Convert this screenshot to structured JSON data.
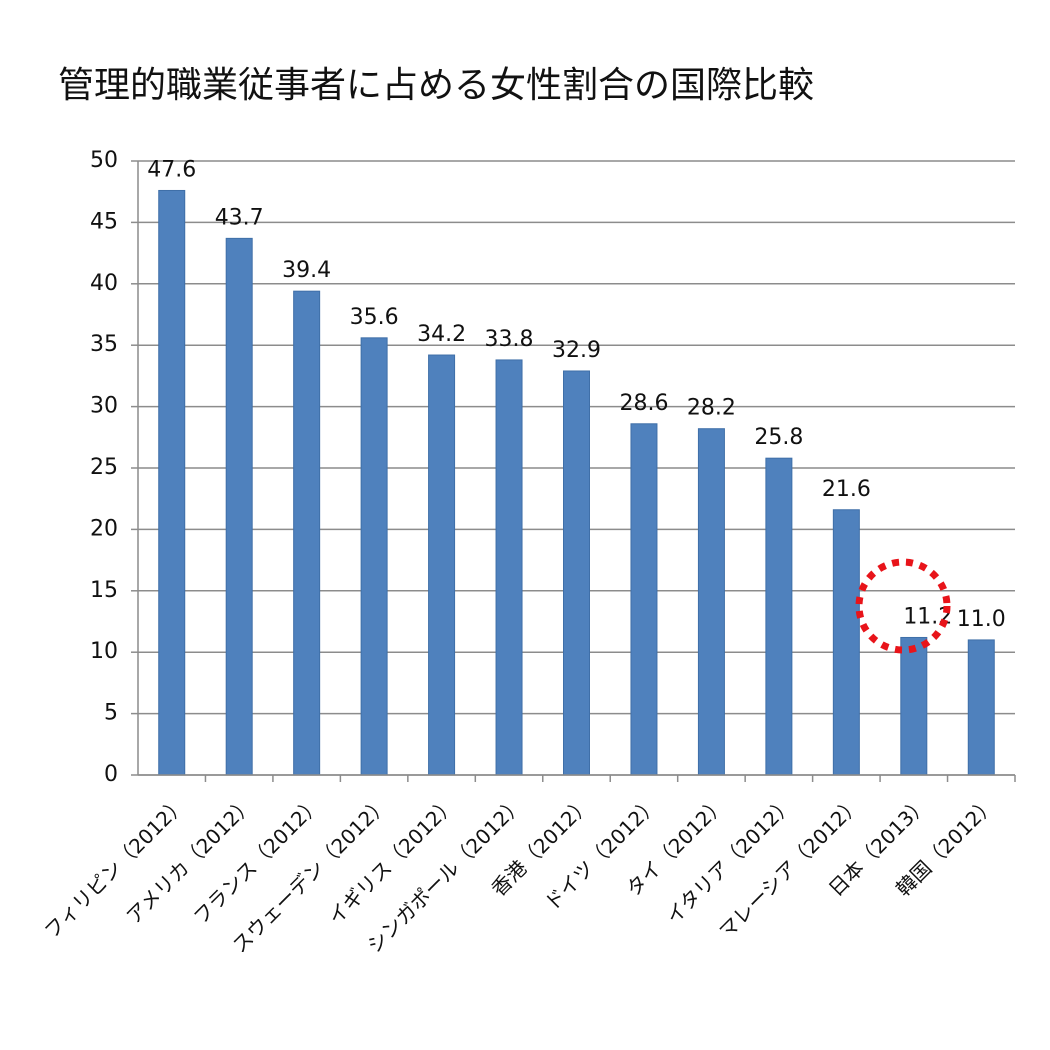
{
  "chart_data": {
    "type": "bar",
    "title": "管理的職業従事者に占める女性割合の国際比較",
    "categories": [
      "フィリピン（2012）",
      "アメリカ（2012）",
      "フランス（2012）",
      "スウェーデン（2012）",
      "イギリス（2012）",
      "シンガポール（2012）",
      "香港（2012）",
      "ドイツ（2012）",
      "タイ（2012）",
      "イタリア（2012）",
      "マレーシア（2012）",
      "日本（2013）",
      "韓国（2012）"
    ],
    "values": [
      47.6,
      43.7,
      39.4,
      35.6,
      34.2,
      33.8,
      32.9,
      28.6,
      28.2,
      25.8,
      21.6,
      11.2,
      11.0
    ],
    "value_labels": [
      "47.6",
      "43.7",
      "39.4",
      "35.6",
      "34.2",
      "33.8",
      "32.9",
      "28.6",
      "28.2",
      "25.8",
      "21.6",
      "11.2",
      "11.0"
    ],
    "color": "#4f81bd",
    "ylim": [
      0,
      50
    ],
    "yticks": [
      0,
      5,
      10,
      15,
      20,
      25,
      30,
      35,
      40,
      45,
      50
    ],
    "grid": true
  }
}
